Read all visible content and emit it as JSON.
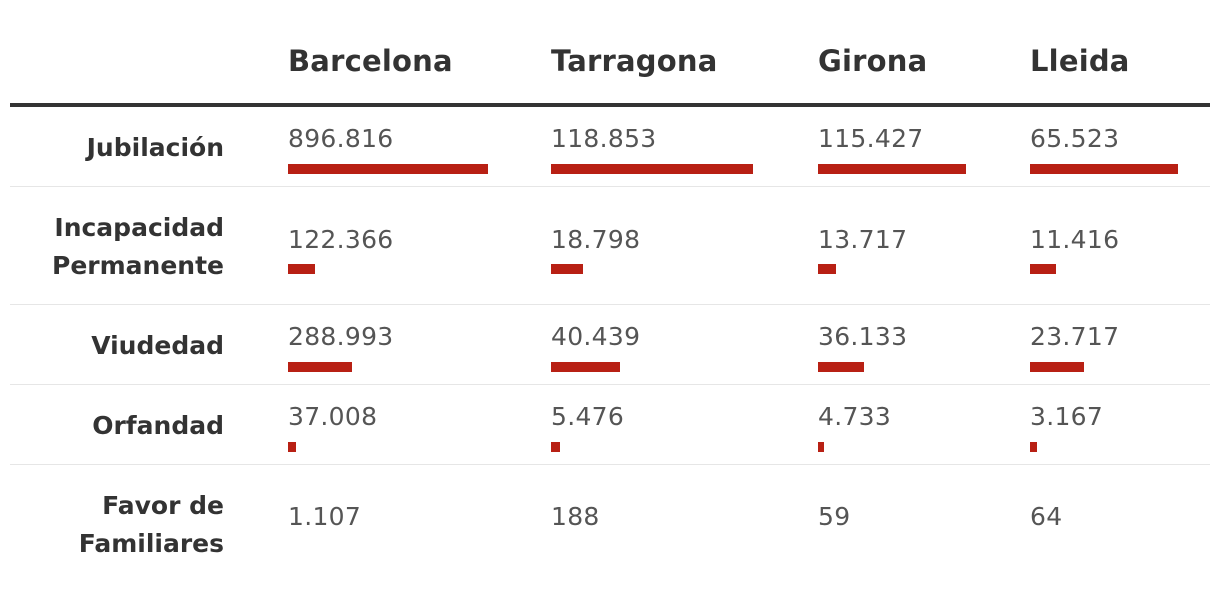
{
  "chart_data": {
    "type": "table",
    "columns": [
      "Barcelona",
      "Tarragona",
      "Girona",
      "Lleida"
    ],
    "rows": [
      {
        "label": "Jubilación",
        "values": [
          896816,
          118853,
          115427,
          65523
        ],
        "display": [
          "896.816",
          "118.853",
          "115.427",
          "65.523"
        ]
      },
      {
        "label": "Incapacidad Permanente",
        "values": [
          122366,
          18798,
          13717,
          11416
        ],
        "display": [
          "122.366",
          "18.798",
          "13.717",
          "11.416"
        ]
      },
      {
        "label": "Viudedad",
        "values": [
          288993,
          40439,
          36133,
          23717
        ],
        "display": [
          "288.993",
          "40.439",
          "36.133",
          "23.717"
        ]
      },
      {
        "label": "Orfandad",
        "values": [
          37008,
          5476,
          4733,
          3167
        ],
        "display": [
          "37.008",
          "5.476",
          "4.733",
          "3.167"
        ]
      },
      {
        "label": "Favor de Familiares",
        "values": [
          1107,
          188,
          59,
          64
        ],
        "display": [
          "1.107",
          "188",
          "59",
          "64"
        ]
      }
    ],
    "bar_scale": "per column, relative to column maximum"
  },
  "colors": {
    "bar": "#b82014",
    "text": "#333333",
    "value_text": "#555555",
    "header_rule": "#333333",
    "row_rule": "#e6e6e6"
  }
}
